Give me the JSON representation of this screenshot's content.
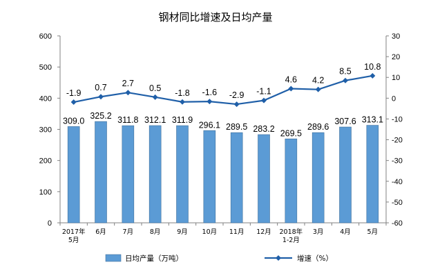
{
  "chart_data": {
    "type": "bar+line",
    "title": "钢材同比增速及日均产量",
    "categories": [
      "2017年\n5月",
      "6月",
      "7月",
      "8月",
      "9月",
      "10月",
      "11月",
      "12月",
      "2018年\n1-2月",
      "3月",
      "4月",
      "5月"
    ],
    "series": [
      {
        "name": "日均产量（万吨）",
        "type": "bar",
        "axis": "left",
        "color": "#5b9bd5",
        "values": [
          309.0,
          325.2,
          311.8,
          312.1,
          311.9,
          296.1,
          289.5,
          283.2,
          269.5,
          289.6,
          307.6,
          313.1
        ],
        "labels": [
          "309.0",
          "325.2",
          "311.8",
          "312.1",
          "311.9",
          "296.1",
          "289.5",
          "283.2",
          "269.5",
          "289.6",
          "307.6",
          "313.1"
        ]
      },
      {
        "name": "增速（%）",
        "type": "line",
        "axis": "right",
        "color": "#1f5fa8",
        "values": [
          -1.9,
          0.7,
          2.7,
          0.5,
          -1.8,
          -1.6,
          -2.9,
          -1.1,
          4.6,
          4.2,
          8.5,
          10.8
        ],
        "labels": [
          "-1.9",
          "0.7",
          "2.7",
          "0.5",
          "-1.8",
          "-1.6",
          "-2.9",
          "-1.1",
          "4.6",
          "4.2",
          "8.5",
          "10.8"
        ]
      }
    ],
    "left_axis": {
      "min": 0,
      "max": 600,
      "step": 100,
      "ticks": [
        "0",
        "100",
        "200",
        "300",
        "400",
        "500",
        "600"
      ]
    },
    "right_axis": {
      "min": -60,
      "max": 30,
      "step": 10,
      "ticks": [
        "-60",
        "-50",
        "-40",
        "-30",
        "-20",
        "-10",
        "0",
        "10",
        "20",
        "30"
      ]
    },
    "grid": false,
    "legend": {
      "position": "bottom",
      "items": [
        "日均产量（万吨）",
        "增速（%）"
      ]
    }
  }
}
